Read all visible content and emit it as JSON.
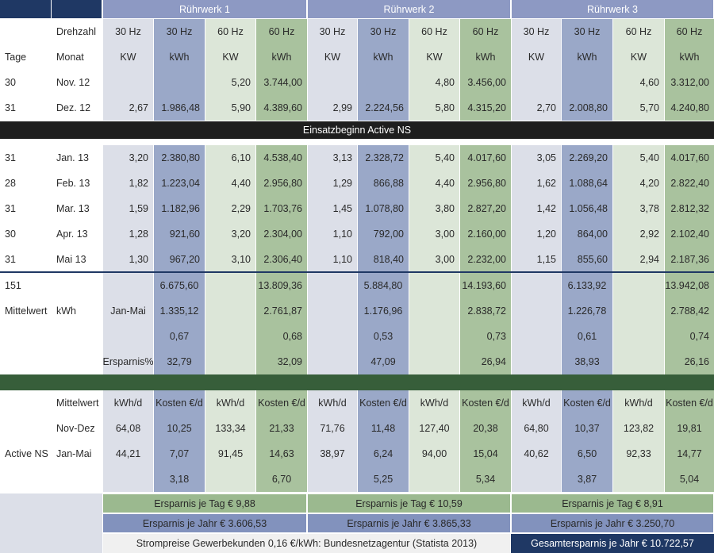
{
  "colors": {
    "navy": "#1f3864",
    "header_blue": "#8d99c3",
    "light_gray": "#dcdfe8",
    "mid_blue": "#9aa8c8",
    "light_green": "#dce6d8",
    "green": "#a9c29e",
    "dark_band": "#1e1e1e",
    "dark_green": "#375e3a",
    "bar_green": "#9bb98f",
    "bar_blue": "#8292bd"
  },
  "group_headers": [
    "Rührwerk 1",
    "Rührwerk 2",
    "Rührwerk 3"
  ],
  "header": {
    "tage": "Tage",
    "drehzahl": "Drehzahl",
    "monat": "Monat",
    "speed_labels": [
      "30 Hz",
      "30 Hz",
      "60 Hz",
      "60 Hz",
      "30 Hz",
      "30 Hz",
      "60 Hz",
      "60 Hz",
      "30 Hz",
      "30 Hz",
      "60 Hz",
      "60 Hz"
    ],
    "unit_labels": [
      "KW",
      "kWh",
      "KW",
      "kWh",
      "KW",
      "kWh",
      "KW",
      "kWh",
      "KW",
      "kWh",
      "KW",
      "kWh"
    ]
  },
  "rows_before": [
    {
      "tage": "30",
      "monat": "Nov. 12",
      "values": [
        "",
        "",
        "5,20",
        "3.744,00",
        "",
        "",
        "4,80",
        "3.456,00",
        "",
        "",
        "4,60",
        "3.312,00"
      ]
    },
    {
      "tage": "31",
      "monat": "Dez. 12",
      "values": [
        "2,67",
        "1.986,48",
        "5,90",
        "4.389,60",
        "2,99",
        "2.224,56",
        "5,80",
        "4.315,20",
        "2,70",
        "2.008,80",
        "5,70",
        "4.240,80"
      ]
    }
  ],
  "band_label": "Einsatzbeginn Active NS",
  "rows_after": [
    {
      "tage": "31",
      "monat": "Jan. 13",
      "values": [
        "3,20",
        "2.380,80",
        "6,10",
        "4.538,40",
        "3,13",
        "2.328,72",
        "5,40",
        "4.017,60",
        "3,05",
        "2.269,20",
        "5,40",
        "4.017,60"
      ]
    },
    {
      "tage": "28",
      "monat": "Feb. 13",
      "values": [
        "1,82",
        "1.223,04",
        "4,40",
        "2.956,80",
        "1,29",
        "866,88",
        "4,40",
        "2.956,80",
        "1,62",
        "1.088,64",
        "4,20",
        "2.822,40"
      ]
    },
    {
      "tage": "31",
      "monat": "Mar.  13",
      "values": [
        "1,59",
        "1.182,96",
        "2,29",
        "1.703,76",
        "1,45",
        "1.078,80",
        "3,80",
        "2.827,20",
        "1,42",
        "1.056,48",
        "3,78",
        "2.812,32"
      ]
    },
    {
      "tage": "30",
      "monat": "Apr. 13",
      "values": [
        "1,28",
        "921,60",
        "3,20",
        "2.304,00",
        "1,10",
        "792,00",
        "3,00",
        "2.160,00",
        "1,20",
        "864,00",
        "2,92",
        "2.102,40"
      ]
    },
    {
      "tage": "31",
      "monat": "Mai 13",
      "values": [
        "1,30",
        "967,20",
        "3,10",
        "2.306,40",
        "1,10",
        "818,40",
        "3,00",
        "2.232,00",
        "1,15",
        "855,60",
        "2,94",
        "2.187,36"
      ]
    }
  ],
  "summary": {
    "total_days": "151",
    "mittelwert_label": "Mittelwert",
    "mittelwert_unit": "kWh",
    "jan_mai_label": "Jan-Mai",
    "ersparnis_label": "Ersparnis%",
    "sum_values": [
      "6.675,60",
      "13.809,36",
      "5.884,80",
      "14.193,60",
      "6.133,92",
      "13.942,08"
    ],
    "avg_values": [
      "1.335,12",
      "2.761,87",
      "1.176,96",
      "2.838,72",
      "1.226,78",
      "2.788,42"
    ],
    "ratio_values": [
      "0,67",
      "0,68",
      "0,53",
      "0,73",
      "0,61",
      "0,74"
    ],
    "saving_values": [
      "32,79",
      "32,09",
      "47,09",
      "26,94",
      "38,93",
      "26,16"
    ]
  },
  "cost_section": {
    "active_ns_label": "Active NS",
    "header": [
      "Mittelwert",
      "kWh/d",
      "Kosten €/d",
      "kWh/d",
      "Kosten €/d",
      "kWh/d",
      "Kosten €/d",
      "kWh/d",
      "Kosten €/d",
      "kWh/d",
      "Kosten €/d",
      "kWh/d",
      "Kosten €/d"
    ],
    "nov_dez": [
      "Nov-Dez",
      "64,08",
      "10,25",
      "133,34",
      "21,33",
      "71,76",
      "11,48",
      "127,40",
      "20,38",
      "64,80",
      "10,37",
      "123,82",
      "19,81"
    ],
    "jan_mai": [
      "Jan-Mai",
      "44,21",
      "7,07",
      "91,45",
      "14,63",
      "38,97",
      "6,24",
      "94,00",
      "15,04",
      "40,62",
      "6,50",
      "92,33",
      "14,77"
    ],
    "diff": [
      "",
      "",
      "3,18",
      "",
      "6,70",
      "",
      "5,25",
      "",
      "5,34",
      "",
      "3,87",
      "",
      "5,04"
    ]
  },
  "footer": {
    "tag_savings": [
      "Ersparnis je Tag € 9,88",
      "Ersparnis je Tag € 10,59",
      "Ersparnis je Tag € 8,91"
    ],
    "year_savings": [
      "Ersparnis je Jahr € 3.606,53",
      "Ersparnis je Jahr € 3.865,33",
      "Ersparnis je Jahr € 3.250,70"
    ],
    "source_note": "Strompreise Gewerbekunden 0,16 €/kWh: Bundesnetzagentur (Statista 2013)",
    "total_saving": "Gesamtersparnis je Jahr € 10.722,57"
  }
}
